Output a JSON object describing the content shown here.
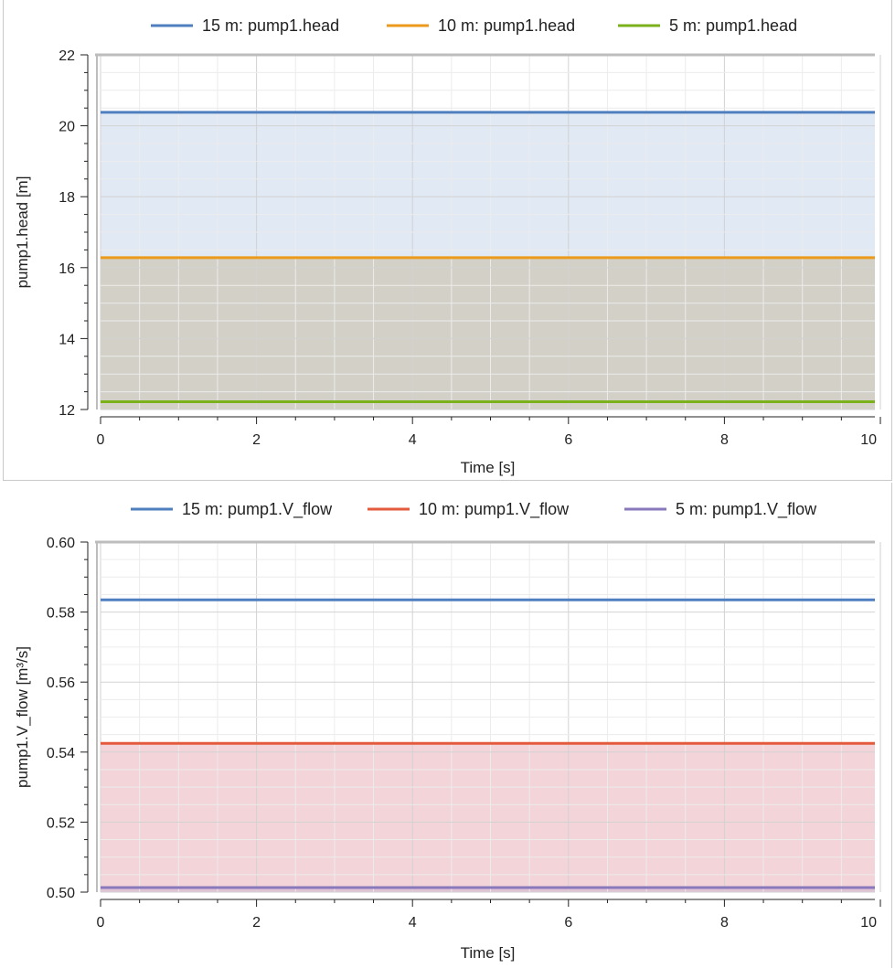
{
  "colors": {
    "blue": "#4f7fbf",
    "orange": "#ec9a1c",
    "green": "#7bb21c",
    "red": "#e45a3c",
    "purple": "#8a78bc",
    "grid_minor": "#ececec",
    "grid_major": "#d2d2d2",
    "axis": "#222222"
  },
  "chart_data": [
    {
      "type": "line",
      "xlabel": "Time [s]",
      "ylabel": "pump1.head [m]",
      "xlim": [
        0,
        10
      ],
      "ylim": [
        12,
        22
      ],
      "xticks": [
        0,
        2,
        4,
        6,
        8,
        10
      ],
      "yticks": [
        12,
        14,
        16,
        18,
        20,
        22
      ],
      "grid": true,
      "legend_position": "top",
      "series": [
        {
          "name": "15 m: pump1.head",
          "color": "#4f7fbf",
          "fill": "rgba(79,127,191,0.17)",
          "x": [
            0,
            10
          ],
          "values": [
            20.38,
            20.38
          ]
        },
        {
          "name": "10 m: pump1.head",
          "color": "#ec9a1c",
          "fill": "rgba(160,120,40,0.22)",
          "x": [
            0,
            10
          ],
          "values": [
            16.28,
            16.28
          ]
        },
        {
          "name": "5 m: pump1.head",
          "color": "#7bb21c",
          "fill": "none",
          "x": [
            0,
            10
          ],
          "values": [
            12.22,
            12.22
          ]
        }
      ]
    },
    {
      "type": "line",
      "xlabel": "Time [s]",
      "ylabel": "pump1.V_flow [m³/s]",
      "xlim": [
        0,
        10
      ],
      "ylim": [
        0.5,
        0.6
      ],
      "xticks": [
        0,
        2,
        4,
        6,
        8,
        10
      ],
      "yticks": [
        0.5,
        0.52,
        0.54,
        0.56,
        0.58,
        0.6
      ],
      "ytick_labels": [
        "0.50",
        "0.52",
        "0.54",
        "0.56",
        "0.58",
        "0.60"
      ],
      "grid": true,
      "legend_position": "top",
      "series": [
        {
          "name": "15 m: pump1.V_flow",
          "color": "#4f7fbf",
          "fill": "none",
          "x": [
            0,
            10
          ],
          "values": [
            0.5835,
            0.5835
          ]
        },
        {
          "name": "10 m: pump1.V_flow",
          "color": "#e45a3c",
          "fill": "rgba(200,60,80,0.22)",
          "x": [
            0,
            10
          ],
          "values": [
            0.5425,
            0.5425
          ]
        },
        {
          "name": "5 m: pump1.V_flow",
          "color": "#8a78bc",
          "fill": "rgba(138,120,188,0.18)",
          "x": [
            0,
            10
          ],
          "values": [
            0.5013,
            0.5013
          ]
        }
      ]
    }
  ]
}
